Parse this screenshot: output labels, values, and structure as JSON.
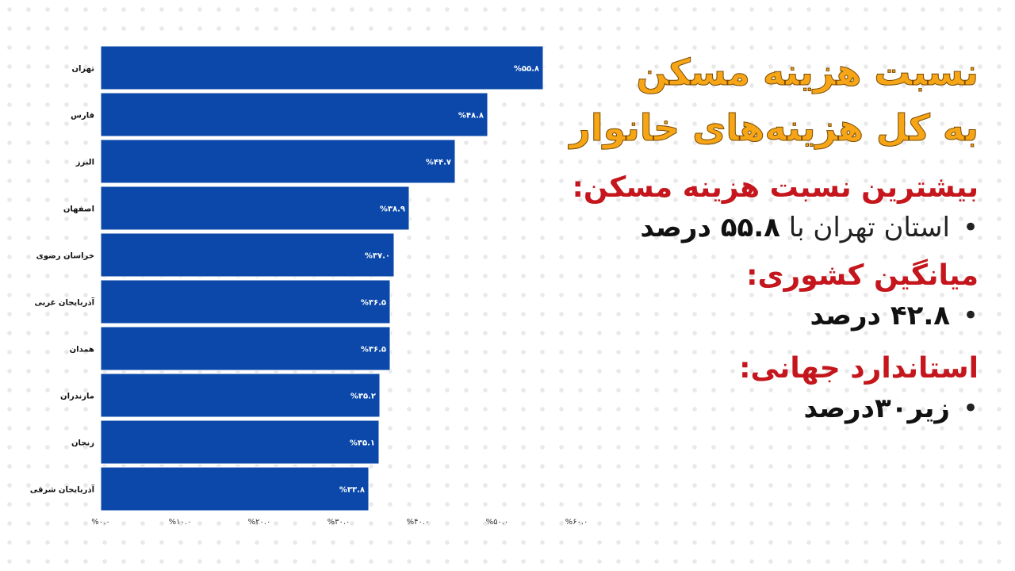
{
  "panel": {
    "title_line1": "نسبت هزینه مسکن",
    "title_line2": "به کل هزینه‌های خانوار",
    "heading_highest": "بیشترین نسبت هزینه مسکن:",
    "highest_text": "استان تهران با",
    "highest_value": "۵۵.۸ درصد",
    "heading_average": "میانگین کشوری:",
    "average_value": "۴۲.۸ درصد",
    "heading_standard": "استاندارد جهانی:",
    "standard_value": "زیر۳۰درصد"
  },
  "colors": {
    "bar": "#0b48aa",
    "title": "#f5a516",
    "heading": "#c4161c"
  },
  "chart_data": {
    "type": "bar",
    "orientation": "horizontal",
    "categories": [
      "تهران",
      "فارس",
      "البرز",
      "اصفهان",
      "خراسان رضوی",
      "آذربایجان غربی",
      "همدان",
      "مازندران",
      "زنجان",
      "آذربایجان شرقی"
    ],
    "values": [
      55.8,
      48.8,
      44.7,
      38.9,
      37.0,
      36.5,
      36.5,
      35.2,
      35.1,
      33.8
    ],
    "value_labels": [
      "%۵۵.۸",
      "%۴۸.۸",
      "%۴۴.۷",
      "%۳۸.۹",
      "%۳۷.۰",
      "%۳۶.۵",
      "%۳۶.۵",
      "%۳۵.۲",
      "%۳۵.۱",
      "%۳۳.۸"
    ],
    "xlim": [
      0,
      60
    ],
    "x_ticks": [
      0,
      10,
      20,
      30,
      40,
      50,
      60
    ],
    "x_tick_labels": [
      "%۰.۰",
      "%۱۰.۰",
      "%۲۰.۰",
      "%۳۰.۰",
      "%۴۰.۰",
      "%۵۰.۰",
      "%۶۰.۰"
    ],
    "grid": false,
    "legend": "none"
  }
}
